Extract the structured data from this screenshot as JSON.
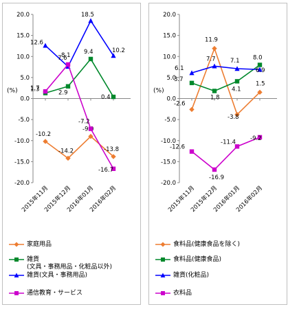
{
  "chart_data": [
    {
      "type": "line",
      "title": "",
      "xlabel": "",
      "ylabel": "(%)",
      "ylim": [
        -20,
        20
      ],
      "yticks": [
        "20.0",
        "15.0",
        "10.0",
        "5.0",
        "0.0",
        "-5.0",
        "-10.0",
        "-15.0",
        "-20.0"
      ],
      "categories": [
        "2015年11月",
        "2015年12月",
        "2016年01月",
        "2016年02月"
      ],
      "series": [
        {
          "name": "家庭用品",
          "color": "#ED7D31",
          "marker": "diamond",
          "values": [
            -10.2,
            -14.2,
            -9.0,
            -13.8
          ],
          "labels": [
            "-10.2",
            "-14.2",
            "-9.0",
            "-13.8"
          ]
        },
        {
          "name": "雑貨\n(文具・事務用品・化粧品以外)",
          "color": "#00882B",
          "marker": "square",
          "values": [
            1.3,
            2.9,
            9.4,
            0.4
          ],
          "labels": [
            "1.3",
            "2.9",
            "9.4",
            "0.4"
          ]
        },
        {
          "name": "雑貨(文具・事務用品)",
          "color": "#0000FF",
          "marker": "triangle",
          "values": [
            12.6,
            7.6,
            18.5,
            10.2
          ],
          "labels": [
            "12.6",
            "7.6",
            "18.5",
            "10.2"
          ]
        },
        {
          "name": "通信教育・サービス",
          "color": "#CC00CC",
          "marker": "square",
          "values": [
            1.7,
            8.1,
            -7.2,
            -16.7
          ],
          "labels": [
            "1.7",
            "8.1",
            "-7.2",
            "-16.7"
          ]
        }
      ]
    },
    {
      "type": "line",
      "title": "",
      "xlabel": "",
      "ylabel": "(%)",
      "ylim": [
        -20,
        20
      ],
      "yticks": [
        "20.0",
        "15.0",
        "10.0",
        "5.0",
        "0.0",
        "-5.0",
        "-10.0",
        "-15.0",
        "-20.0"
      ],
      "categories": [
        "2015年11月",
        "2015年12月",
        "2016年01月",
        "2016年02月"
      ],
      "series": [
        {
          "name": "食料品(健康食品を除く)",
          "color": "#ED7D31",
          "marker": "diamond",
          "values": [
            -2.6,
            11.9,
            -3.8,
            1.5
          ],
          "labels": [
            "-2.6",
            "11.9",
            "-3.8",
            "1.5"
          ]
        },
        {
          "name": "食料品(健康食品)",
          "color": "#00882B",
          "marker": "square",
          "values": [
            3.7,
            1.8,
            4.1,
            8.0
          ],
          "labels": [
            "3.7",
            "1.8",
            "4.1",
            "8.0"
          ]
        },
        {
          "name": "雑貨(化粧品)",
          "color": "#0000FF",
          "marker": "triangle",
          "values": [
            6.1,
            7.7,
            7.1,
            6.9
          ],
          "labels": [
            "6.1",
            "7.7",
            "7.1",
            "6.9"
          ]
        },
        {
          "name": "衣料品",
          "color": "#CC00CC",
          "marker": "square",
          "values": [
            -12.6,
            -16.9,
            -11.4,
            -9.2
          ],
          "labels": [
            "-12.6",
            "-16.9",
            "-11.4",
            "-9.2"
          ]
        }
      ]
    }
  ]
}
